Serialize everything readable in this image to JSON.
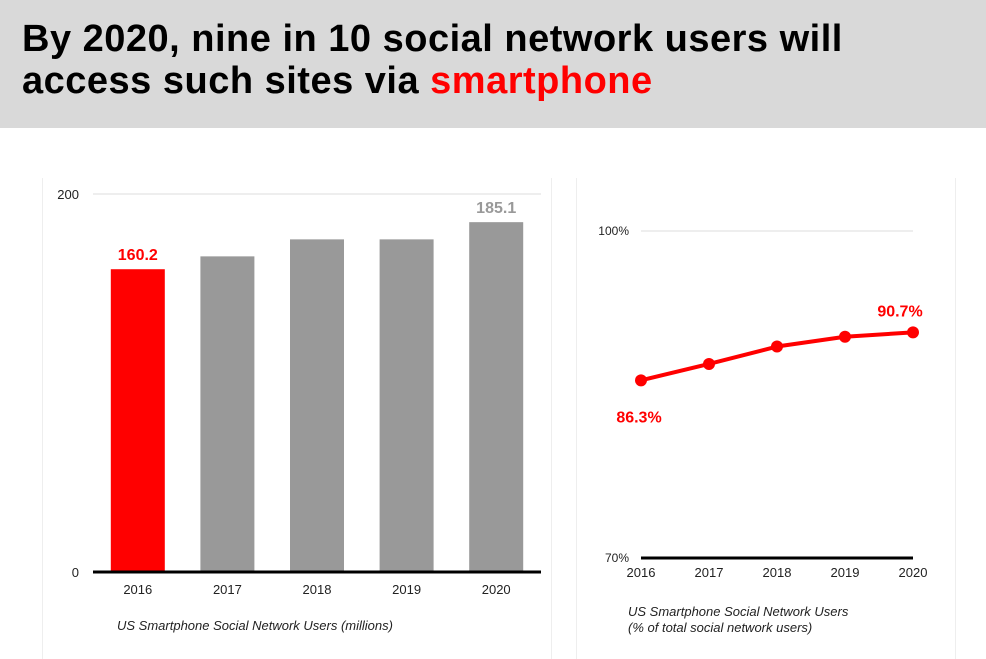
{
  "header": {
    "title_line1": "By 2020, nine in 10 social network users will",
    "title_line2_prefix": "access such sites via ",
    "title_highlight": "smartphone"
  },
  "colors": {
    "highlight": "#ff0000",
    "bar_default": "#999999",
    "axis": "#000000",
    "title_band": "#d9d9d9"
  },
  "chart_data": [
    {
      "type": "bar",
      "categories": [
        "2016",
        "2017",
        "2018",
        "2019",
        "2020"
      ],
      "values": [
        160.2,
        167.0,
        176.0,
        176.0,
        185.1
      ],
      "highlight_index": 0,
      "data_labels": [
        {
          "index": 0,
          "text": "160.2",
          "color": "#ff0000"
        },
        {
          "index": 4,
          "text": "185.1",
          "color": "#999999"
        }
      ],
      "ylim": [
        0,
        200
      ],
      "y_ticks": [
        {
          "value": 0,
          "label": "0"
        },
        {
          "value": 200,
          "label": "200"
        }
      ],
      "caption": "US Smartphone Social Network Users (millions)",
      "title": "",
      "xlabel": "",
      "ylabel": "",
      "grid": true
    },
    {
      "type": "line",
      "categories": [
        "2016",
        "2017",
        "2018",
        "2019",
        "2020"
      ],
      "values": [
        86.3,
        87.8,
        89.4,
        90.3,
        90.7
      ],
      "data_labels": [
        {
          "index": 0,
          "text": "86.3%",
          "color": "#ff0000"
        },
        {
          "index": 4,
          "text": "90.7%",
          "color": "#ff0000"
        }
      ],
      "ylim": [
        70,
        100
      ],
      "y_ticks": [
        {
          "value": 70,
          "label": "70%"
        },
        {
          "value": 100,
          "label": "100%"
        }
      ],
      "caption_line1": "US Smartphone Social Network Users",
      "caption_line2": "(% of total social network users)",
      "title": "",
      "xlabel": "",
      "ylabel": "",
      "grid": true
    }
  ]
}
